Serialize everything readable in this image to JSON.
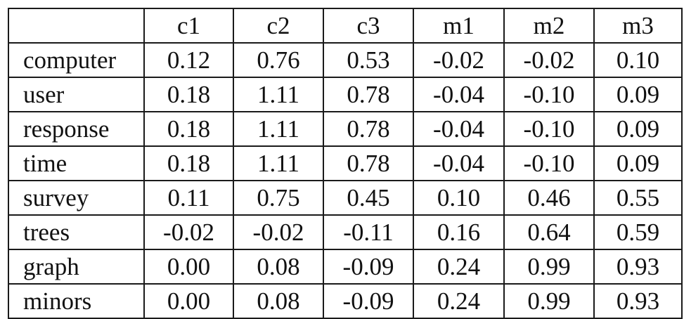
{
  "table": {
    "corner": "",
    "columns": [
      "c1",
      "c2",
      "c3",
      "m1",
      "m2",
      "m3"
    ],
    "rows": [
      {
        "label": "computer",
        "values": [
          "0.12",
          "0.76",
          "0.53",
          "-0.02",
          "-0.02",
          "0.10"
        ]
      },
      {
        "label": "user",
        "values": [
          "0.18",
          "1.11",
          "0.78",
          "-0.04",
          "-0.10",
          "0.09"
        ]
      },
      {
        "label": "response",
        "values": [
          "0.18",
          "1.11",
          "0.78",
          "-0.04",
          "-0.10",
          "0.09"
        ]
      },
      {
        "label": "time",
        "values": [
          "0.18",
          "1.11",
          "0.78",
          "-0.04",
          "-0.10",
          "0.09"
        ]
      },
      {
        "label": "survey",
        "values": [
          "0.11",
          "0.75",
          "0.45",
          "0.10",
          "0.46",
          "0.55"
        ]
      },
      {
        "label": "trees",
        "values": [
          "-0.02",
          "-0.02",
          "-0.11",
          "0.16",
          "0.64",
          "0.59"
        ]
      },
      {
        "label": "graph",
        "values": [
          "0.00",
          "0.08",
          "-0.09",
          "0.24",
          "0.99",
          "0.93"
        ]
      },
      {
        "label": "minors",
        "values": [
          "0.00",
          "0.08",
          "-0.09",
          "0.24",
          "0.99",
          "0.93"
        ]
      }
    ]
  },
  "chart_data": {
    "type": "table",
    "columns": [
      "",
      "c1",
      "c2",
      "c3",
      "m1",
      "m2",
      "m3"
    ],
    "rows": [
      [
        "computer",
        0.12,
        0.76,
        0.53,
        -0.02,
        -0.02,
        0.1
      ],
      [
        "user",
        0.18,
        1.11,
        0.78,
        -0.04,
        -0.1,
        0.09
      ],
      [
        "response",
        0.18,
        1.11,
        0.78,
        -0.04,
        -0.1,
        0.09
      ],
      [
        "time",
        0.18,
        1.11,
        0.78,
        -0.04,
        -0.1,
        0.09
      ],
      [
        "survey",
        0.11,
        0.75,
        0.45,
        0.1,
        0.46,
        0.55
      ],
      [
        "trees",
        -0.02,
        -0.02,
        -0.11,
        0.16,
        0.64,
        0.59
      ],
      [
        "graph",
        0.0,
        0.08,
        -0.09,
        0.24,
        0.99,
        0.93
      ],
      [
        "minors",
        0.0,
        0.08,
        -0.09,
        0.24,
        0.99,
        0.93
      ]
    ]
  }
}
